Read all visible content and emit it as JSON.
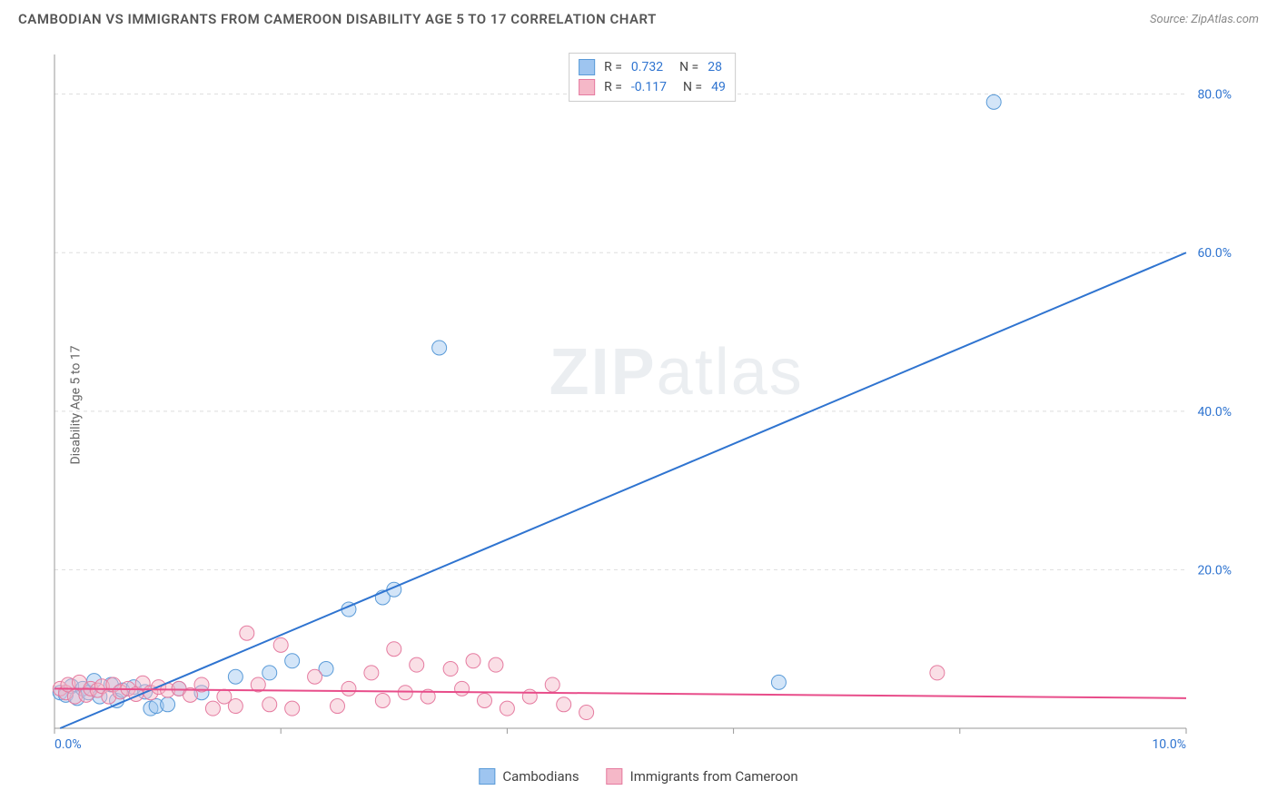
{
  "title": "CAMBODIAN VS IMMIGRANTS FROM CAMEROON DISABILITY AGE 5 TO 17 CORRELATION CHART",
  "source": "Source: ZipAtlas.com",
  "ylabel": "Disability Age 5 to 17",
  "watermark_bold": "ZIP",
  "watermark_rest": "atlas",
  "chart": {
    "type": "scatter",
    "xlim": [
      0,
      10
    ],
    "ylim": [
      0,
      85
    ],
    "xticks": [
      0,
      2,
      4,
      6,
      8,
      10
    ],
    "xtick_labels": [
      "0.0%",
      "",
      "",
      "",
      "",
      "10.0%"
    ],
    "yticks": [
      20,
      40,
      60,
      80
    ],
    "ytick_labels": [
      "20.0%",
      "40.0%",
      "60.0%",
      "80.0%"
    ],
    "grid_color": "#dddddd",
    "grid_dash": "4,4",
    "axis_color": "#999999",
    "background_color": "#ffffff",
    "tick_label_color_x": "#2f74d0",
    "tick_label_color_y": "#2f74d0",
    "tick_fontsize": 14,
    "marker_radius": 8,
    "marker_opacity": 0.45,
    "series": [
      {
        "name": "Cambodians",
        "label": "Cambodians",
        "color_fill": "#9ec5f0",
        "color_stroke": "#5a9bd8",
        "trend": {
          "x0": 0.05,
          "y0": 0,
          "x1": 10,
          "y1": 60,
          "color": "#2f74d0",
          "width": 2
        },
        "stats": {
          "r_label": "R =",
          "r": "0.732",
          "n_label": "N =",
          "n": "28"
        },
        "points": [
          [
            0.05,
            4.5
          ],
          [
            0.1,
            4.2
          ],
          [
            0.15,
            5.3
          ],
          [
            0.2,
            3.8
          ],
          [
            0.25,
            5.0
          ],
          [
            0.3,
            4.5
          ],
          [
            0.35,
            6.0
          ],
          [
            0.4,
            4.0
          ],
          [
            0.5,
            5.5
          ],
          [
            0.55,
            3.5
          ],
          [
            0.6,
            4.8
          ],
          [
            0.7,
            5.2
          ],
          [
            0.8,
            4.6
          ],
          [
            0.85,
            2.5
          ],
          [
            0.9,
            2.8
          ],
          [
            1.0,
            3.0
          ],
          [
            1.1,
            5.0
          ],
          [
            1.3,
            4.5
          ],
          [
            1.6,
            6.5
          ],
          [
            1.9,
            7.0
          ],
          [
            2.1,
            8.5
          ],
          [
            2.4,
            7.5
          ],
          [
            2.6,
            15.0
          ],
          [
            2.9,
            16.5
          ],
          [
            3.0,
            17.5
          ],
          [
            3.4,
            48.0
          ],
          [
            6.4,
            5.8
          ],
          [
            8.3,
            79.0
          ]
        ]
      },
      {
        "name": "Immigrants from Cameroon",
        "label": "Immigrants from Cameroon",
        "color_fill": "#f5b8c8",
        "color_stroke": "#e57ba0",
        "trend": {
          "x0": 0,
          "y0": 5.0,
          "x1": 10,
          "y1": 3.8,
          "color": "#e84d8a",
          "width": 2
        },
        "stats": {
          "r_label": "R =",
          "r": "-0.117",
          "n_label": "N =",
          "n": "49"
        },
        "points": [
          [
            0.05,
            5.0
          ],
          [
            0.1,
            4.5
          ],
          [
            0.12,
            5.5
          ],
          [
            0.18,
            4.0
          ],
          [
            0.22,
            5.8
          ],
          [
            0.28,
            4.2
          ],
          [
            0.32,
            5.0
          ],
          [
            0.38,
            4.8
          ],
          [
            0.42,
            5.3
          ],
          [
            0.48,
            4.0
          ],
          [
            0.52,
            5.5
          ],
          [
            0.58,
            4.6
          ],
          [
            0.65,
            5.0
          ],
          [
            0.72,
            4.3
          ],
          [
            0.78,
            5.7
          ],
          [
            0.85,
            4.5
          ],
          [
            0.92,
            5.2
          ],
          [
            1.0,
            4.8
          ],
          [
            1.1,
            5.0
          ],
          [
            1.2,
            4.2
          ],
          [
            1.3,
            5.5
          ],
          [
            1.4,
            2.5
          ],
          [
            1.5,
            4.0
          ],
          [
            1.6,
            2.8
          ],
          [
            1.7,
            12.0
          ],
          [
            1.8,
            5.5
          ],
          [
            1.9,
            3.0
          ],
          [
            2.0,
            10.5
          ],
          [
            2.1,
            2.5
          ],
          [
            2.3,
            6.5
          ],
          [
            2.5,
            2.8
          ],
          [
            2.6,
            5.0
          ],
          [
            2.8,
            7.0
          ],
          [
            2.9,
            3.5
          ],
          [
            3.0,
            10.0
          ],
          [
            3.1,
            4.5
          ],
          [
            3.2,
            8.0
          ],
          [
            3.3,
            4.0
          ],
          [
            3.5,
            7.5
          ],
          [
            3.6,
            5.0
          ],
          [
            3.7,
            8.5
          ],
          [
            3.8,
            3.5
          ],
          [
            3.9,
            8.0
          ],
          [
            4.0,
            2.5
          ],
          [
            4.2,
            4.0
          ],
          [
            4.4,
            5.5
          ],
          [
            4.5,
            3.0
          ],
          [
            4.7,
            2.0
          ],
          [
            7.8,
            7.0
          ]
        ]
      }
    ]
  }
}
